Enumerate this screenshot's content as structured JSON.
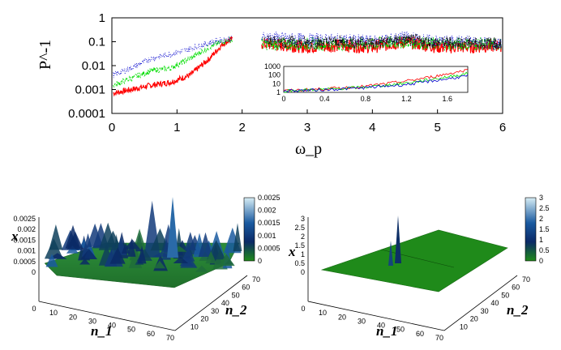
{
  "chart_data": [
    {
      "type": "line",
      "title": "",
      "xlabel": "ω_p",
      "ylabel": "P^-1",
      "yscale": "log",
      "xlim": [
        0,
        6
      ],
      "ylim": [
        0.0001,
        1
      ],
      "x_ticks": [
        "0",
        "1",
        "2",
        "3",
        "4",
        "5",
        "6"
      ],
      "y_ticks": [
        "0.0001",
        "0.001",
        "0.01",
        "0.1",
        "1"
      ],
      "series": [
        {
          "color": "#ff0000",
          "style": "solid",
          "x": [
            0.02,
            0.3,
            0.6,
            0.9,
            1.2,
            1.5,
            1.7,
            1.82,
            2.4,
            3.0,
            3.5,
            4.0,
            4.5,
            5.0,
            5.5,
            5.98
          ],
          "y": [
            0.0007,
            0.001,
            0.0015,
            0.002,
            0.004,
            0.02,
            0.08,
            0.12,
            0.08,
            0.06,
            0.07,
            0.06,
            0.1,
            0.06,
            0.06,
            0.07
          ]
        },
        {
          "color": "#00dd00",
          "style": "dashed",
          "x": [
            0.02,
            0.3,
            0.6,
            0.9,
            1.2,
            1.5,
            1.7,
            1.82,
            2.4,
            3.0,
            3.5,
            4.0,
            4.5,
            5.0,
            5.5,
            5.98
          ],
          "y": [
            0.0015,
            0.003,
            0.006,
            0.008,
            0.02,
            0.06,
            0.1,
            0.12,
            0.08,
            0.08,
            0.08,
            0.08,
            0.1,
            0.08,
            0.08,
            0.08
          ]
        },
        {
          "color": "#0000cc",
          "style": "dotted",
          "x": [
            0.02,
            0.3,
            0.6,
            0.9,
            1.2,
            1.5,
            1.7,
            1.82,
            2.4,
            3.0,
            3.5,
            4.0,
            4.5,
            5.0,
            5.5,
            5.98
          ],
          "y": [
            0.004,
            0.008,
            0.02,
            0.03,
            0.05,
            0.09,
            0.12,
            0.13,
            0.15,
            0.12,
            0.12,
            0.1,
            0.15,
            0.1,
            0.1,
            0.08
          ]
        },
        {
          "color": "#111111",
          "style": "dashdot",
          "x": [
            2.4,
            3.0,
            3.5,
            4.0,
            4.5,
            5.0,
            5.5,
            5.98
          ],
          "y": [
            0.1,
            0.09,
            0.1,
            0.09,
            0.12,
            0.09,
            0.09,
            0.08
          ]
        }
      ],
      "inset": {
        "yscale": "log",
        "xlim": [
          0,
          1.8
        ],
        "ylim": [
          1,
          1000
        ],
        "x_ticks": [
          "0",
          "0.4",
          "0.8",
          "1.2",
          "1.6"
        ],
        "y_ticks": [
          "1",
          "10",
          "100",
          "1000"
        ],
        "series": [
          {
            "color": "#ff0000",
            "x": [
              0.0,
              0.4,
              0.8,
              1.2,
              1.5,
              1.8
            ],
            "y": [
              1.5,
              2.5,
              5,
              20,
              80,
              400
            ]
          },
          {
            "color": "#00dd00",
            "x": [
              0.0,
              0.4,
              0.8,
              1.2,
              1.5,
              1.8
            ],
            "y": [
              1.5,
              2.2,
              4,
              12,
              40,
              150
            ]
          },
          {
            "color": "#0000cc",
            "x": [
              0.0,
              0.4,
              0.8,
              1.2,
              1.5,
              1.8
            ],
            "y": [
              1.5,
              2,
              3.5,
              8,
              25,
              80
            ]
          }
        ]
      }
    },
    {
      "type": "surface",
      "zlabel": "x",
      "xlabel": "n_1",
      "ylabel": "n_2",
      "x_ticks": [
        "0",
        "10",
        "20",
        "30",
        "40",
        "50",
        "60",
        "70"
      ],
      "y_ticks": [
        "10",
        "20",
        "30",
        "40",
        "50",
        "60",
        "70"
      ],
      "z_ticks": [
        "0",
        "0.0005",
        "0.001",
        "0.0015",
        "0.002",
        "0.0025"
      ],
      "colorbar_ticks": [
        "0",
        "0.0005",
        "0.001",
        "0.0015",
        "0.002",
        "0.0025"
      ],
      "zlim": [
        0,
        0.0025
      ]
    },
    {
      "type": "surface",
      "zlabel": "x",
      "xlabel": "n_1",
      "ylabel": "n_2",
      "x_ticks": [
        "0",
        "10",
        "20",
        "30",
        "40",
        "50",
        "60",
        "70"
      ],
      "y_ticks": [
        "10",
        "20",
        "30",
        "40",
        "50",
        "60",
        "70"
      ],
      "z_ticks": [
        "0",
        "0.5",
        "1",
        "1.5",
        "2",
        "2.5",
        "3"
      ],
      "colorbar_ticks": [
        "0",
        "0.5",
        "1",
        "1.5",
        "2",
        "2.5",
        "3"
      ],
      "zlim": [
        0,
        3
      ]
    }
  ]
}
